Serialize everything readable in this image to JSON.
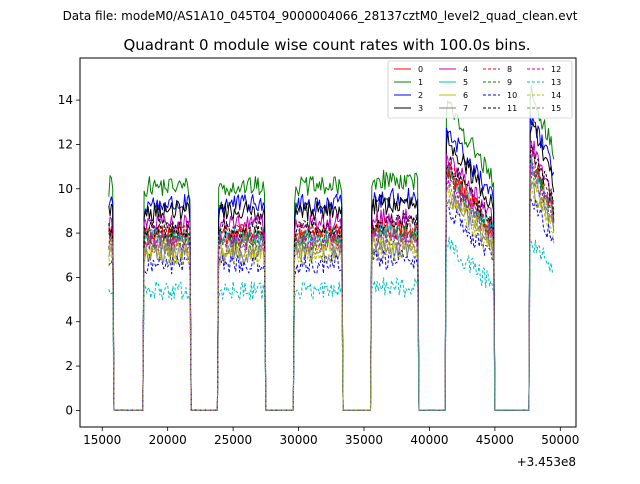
{
  "chart_data": {
    "type": "line",
    "suptitle": "Data file: modeM0/AS1A10_045T04_9000004066_28137cztM0_level2_quad_clean.evt",
    "title": "Quadrant 0 module wise count rates with 100.0s bins.",
    "xlabel": "",
    "ylabel": "",
    "x_offset_label": "+3.453e8",
    "xlim": [
      13300,
      51200
    ],
    "ylim": [
      -0.75,
      15.9
    ],
    "x_ticks": [
      15000,
      20000,
      25000,
      30000,
      35000,
      40000,
      45000,
      50000
    ],
    "x_tick_labels": [
      "15000",
      "20000",
      "25000",
      "30000",
      "35000",
      "40000",
      "45000",
      "50000"
    ],
    "y_ticks": [
      0,
      2,
      4,
      6,
      8,
      10,
      12,
      14
    ],
    "y_tick_labels": [
      "0",
      "2",
      "4",
      "6",
      "8",
      "10",
      "12",
      "14"
    ],
    "legend_position": "upper right",
    "active_intervals": [
      [
        15500,
        15800
      ],
      [
        18200,
        21700
      ],
      [
        23900,
        27400
      ],
      [
        29700,
        33300
      ],
      [
        35600,
        39100
      ],
      [
        41300,
        44900
      ],
      [
        47700,
        49500
      ]
    ],
    "series": [
      {
        "name": "0",
        "color": "#ff0000",
        "dash": "solid",
        "level": 7.9
      },
      {
        "name": "1",
        "color": "#008000",
        "dash": "solid",
        "level": 10.1
      },
      {
        "name": "2",
        "color": "#0000ff",
        "dash": "solid",
        "level": 9.3
      },
      {
        "name": "3",
        "color": "#000000",
        "dash": "solid",
        "level": 9.0
      },
      {
        "name": "4",
        "color": "#bf00bf",
        "dash": "solid",
        "level": 8.4
      },
      {
        "name": "5",
        "color": "#00bfbf",
        "dash": "solid",
        "level": 7.8
      },
      {
        "name": "6",
        "color": "#bfbf00",
        "dash": "solid",
        "level": 7.3
      },
      {
        "name": "7",
        "color": "#808080",
        "dash": "solid",
        "level": 7.1
      },
      {
        "name": "8",
        "color": "#ff0000",
        "dash": "dashed",
        "level": 8.0
      },
      {
        "name": "9",
        "color": "#008000",
        "dash": "dashed",
        "level": 7.7
      },
      {
        "name": "10",
        "color": "#0000ff",
        "dash": "dashed",
        "level": 6.6
      },
      {
        "name": "11",
        "color": "#000000",
        "dash": "dashed",
        "level": 8.2
      },
      {
        "name": "12",
        "color": "#bf00bf",
        "dash": "dashed",
        "level": 7.6
      },
      {
        "name": "13",
        "color": "#00bfbf",
        "dash": "dashed",
        "level": 5.4
      },
      {
        "name": "14",
        "color": "#bfbf00",
        "dash": "dashed",
        "level": 7.0
      },
      {
        "name": "15",
        "color": "#808080",
        "dash": "dashed",
        "level": 7.4
      }
    ]
  }
}
